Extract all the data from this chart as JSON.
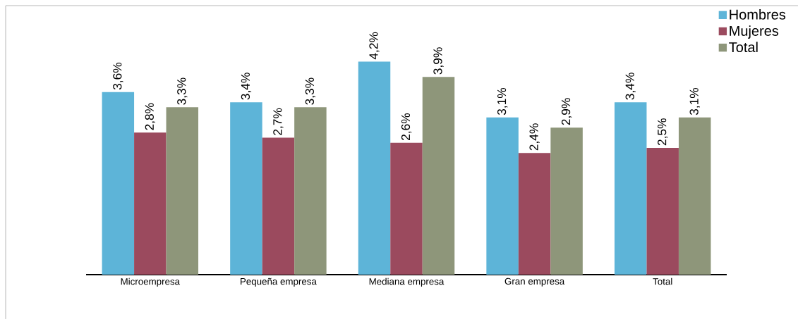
{
  "chart_data": {
    "type": "bar",
    "categories": [
      "Microempresa",
      "Pequeña empresa",
      "Mediana empresa",
      "Gran empresa",
      "Total"
    ],
    "series": [
      {
        "name": "Hombres",
        "color": "#5db4d8",
        "values": [
          3.6,
          3.4,
          4.2,
          3.1,
          3.4
        ],
        "value_labels": [
          "3,6%",
          "3,4%",
          "4,2%",
          "3,1%",
          "3,4%"
        ]
      },
      {
        "name": "Mujeres",
        "color": "#9b4a5e",
        "values": [
          2.8,
          2.7,
          2.6,
          2.4,
          2.5
        ],
        "value_labels": [
          "2,8%",
          "2,7%",
          "2,6%",
          "2,4%",
          "2,5%"
        ]
      },
      {
        "name": "Total",
        "color": "#8e967a",
        "values": [
          3.3,
          3.3,
          3.9,
          2.9,
          3.1
        ],
        "value_labels": [
          "3,3%",
          "3,3%",
          "3,9%",
          "2,9%",
          "3,1%"
        ]
      }
    ],
    "legend": "top right",
    "grid": false
  }
}
